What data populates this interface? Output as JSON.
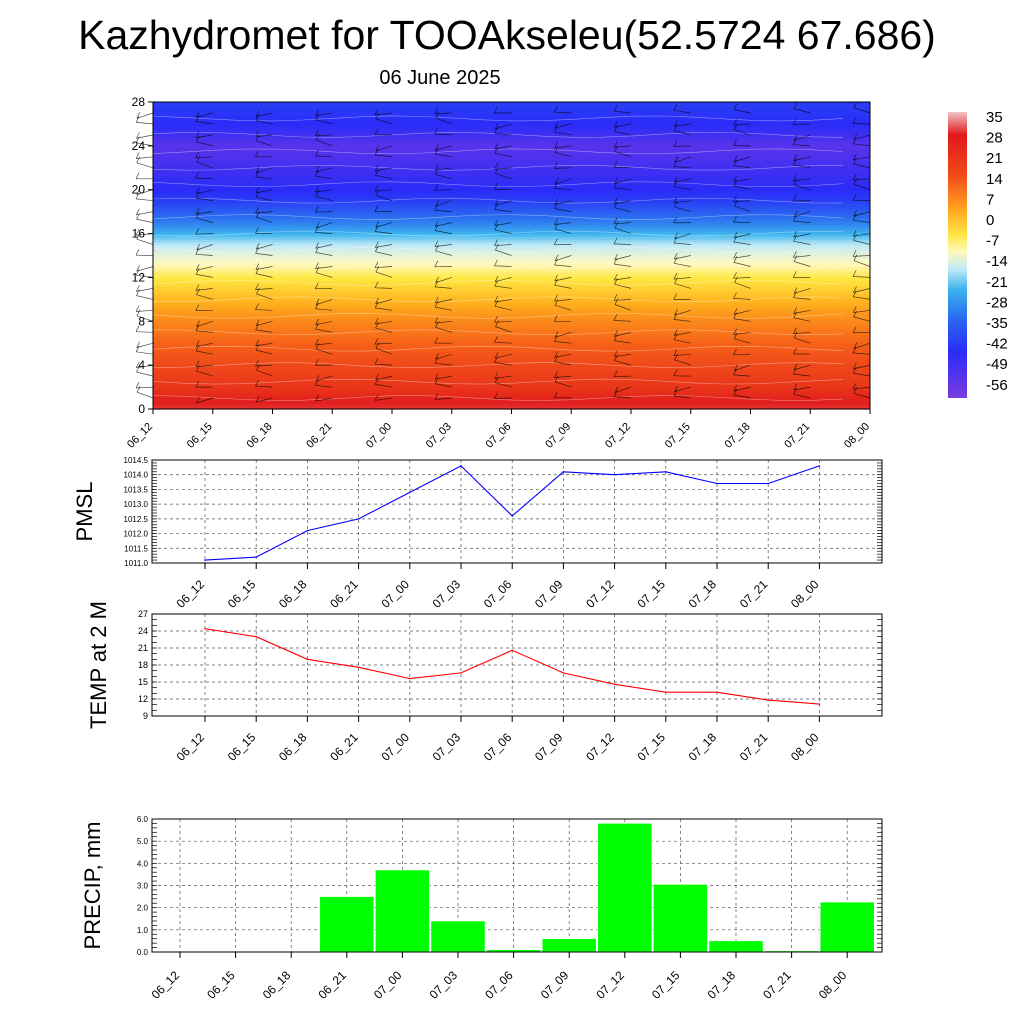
{
  "title": "Kazhydromet for TOOAkseleu(52.5724 67.686)",
  "date": "06 June 2025",
  "colors": {
    "pmsl_line": "#0000ff",
    "temp_line": "#ff0000",
    "precip_bar": "#00ff00",
    "grid": "#000000"
  },
  "chart_data": [
    {
      "type": "heatmap",
      "name": "cross-section",
      "x_ticks": [
        "06_12",
        "06_15",
        "06_18",
        "06_21",
        "07_00",
        "07_03",
        "07_06",
        "07_09",
        "07_12",
        "07_15",
        "07_18",
        "07_21",
        "08_00"
      ],
      "y_ticks": [
        "0",
        "4",
        "8",
        "12",
        "16",
        "20",
        "24",
        "28"
      ],
      "ylim": [
        0,
        28
      ],
      "colorbar_labels": [
        "35",
        "28",
        "21",
        "14",
        "7",
        "0",
        "-7",
        "-14",
        "-21",
        "-28",
        "-35",
        "-42",
        "-49",
        "-56"
      ],
      "colorbar_range": [
        -63,
        42
      ],
      "level_temperature_profile": {
        "levels": [
          0,
          2,
          4,
          6,
          8,
          10,
          12,
          13,
          14,
          16,
          17,
          18,
          19,
          20,
          22,
          24,
          26,
          28
        ],
        "values": [
          30,
          24,
          21,
          17,
          12,
          6,
          0,
          -8,
          -14,
          -28,
          -38,
          -45,
          -52,
          -56,
          -58,
          -60,
          -56,
          -52
        ]
      },
      "wind_barbs": "shown"
    },
    {
      "type": "line",
      "name": "pmsl",
      "ylabel": "PMSL",
      "categories": [
        "06_12",
        "06_15",
        "06_18",
        "06_21",
        "07_00",
        "07_03",
        "07_06",
        "07_09",
        "07_12",
        "07_15",
        "07_18",
        "07_21",
        "08_00"
      ],
      "values": [
        1011.1,
        1011.2,
        1012.1,
        1012.5,
        1013.4,
        1014.3,
        1012.6,
        1014.1,
        1014.0,
        1014.1,
        1013.7,
        1013.7,
        1014.3
      ],
      "ylim": [
        1011.0,
        1014.5
      ],
      "y_ticks": [
        "1011.0",
        "1011.5",
        "1012.0",
        "1012.5",
        "1013.0",
        "1013.5",
        "1014.0",
        "1014.5"
      ],
      "grid": true
    },
    {
      "type": "line",
      "name": "temp2m",
      "ylabel": "TEMP at 2 M",
      "categories": [
        "06_12",
        "06_15",
        "06_18",
        "06_21",
        "07_00",
        "07_03",
        "07_06",
        "07_09",
        "07_12",
        "07_15",
        "07_18",
        "07_21",
        "08_00"
      ],
      "values": [
        24.4,
        23.0,
        19.0,
        17.6,
        15.6,
        16.6,
        20.6,
        16.6,
        14.6,
        13.2,
        13.2,
        11.8,
        11.1
      ],
      "ylim": [
        9,
        27
      ],
      "y_ticks": [
        "9",
        "12",
        "15",
        "18",
        "21",
        "24",
        "27"
      ],
      "grid": true
    },
    {
      "type": "bar",
      "name": "precip",
      "ylabel": "PRECIP, mm",
      "categories": [
        "06_12",
        "06_15",
        "06_18",
        "06_21",
        "07_00",
        "07_03",
        "07_06",
        "07_09",
        "07_12",
        "07_15",
        "07_18",
        "07_21",
        "08_00"
      ],
      "values": [
        0.0,
        0.0,
        0.0,
        2.5,
        3.7,
        1.4,
        0.1,
        0.6,
        5.8,
        3.05,
        0.5,
        0.05,
        2.25
      ],
      "ylim": [
        0,
        6
      ],
      "y_ticks": [
        "0.0",
        "1.0",
        "2.0",
        "3.0",
        "4.0",
        "5.0",
        "6.0"
      ],
      "grid": true
    }
  ]
}
